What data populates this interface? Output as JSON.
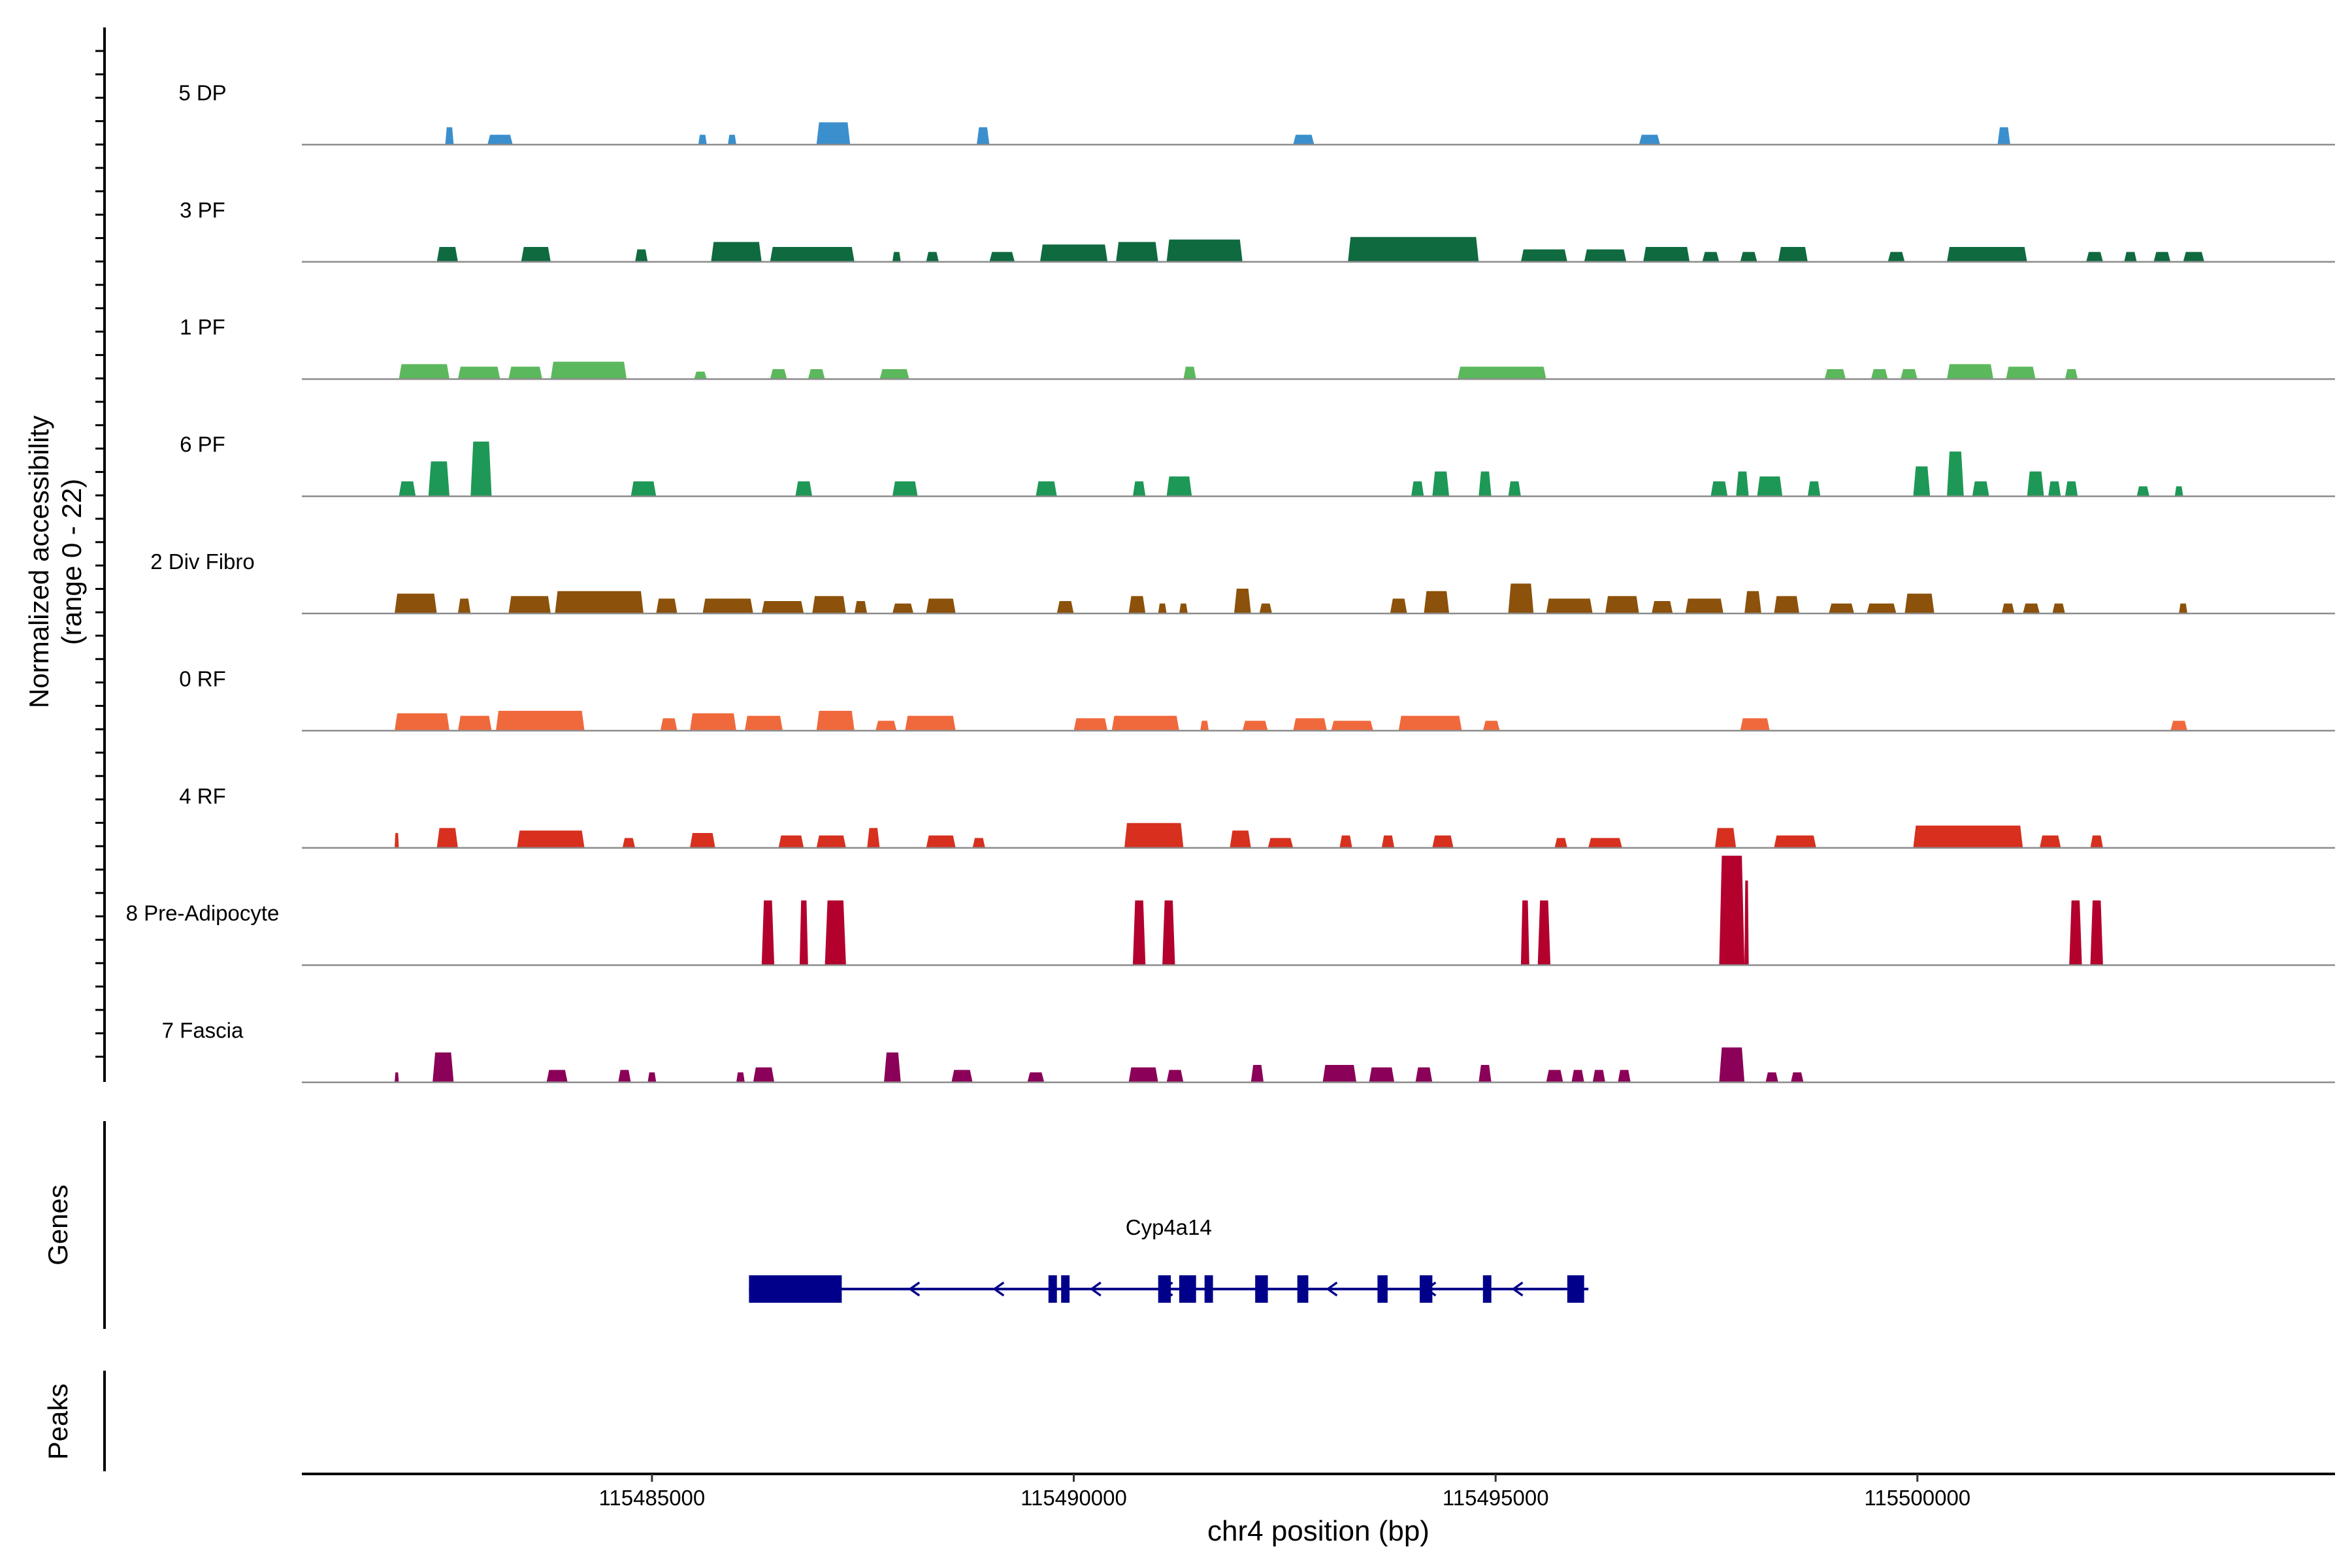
{
  "chart_data": {
    "type": "area",
    "subtype": "coverage-track",
    "y_axis_label": "Normalized accessibility",
    "y_axis_sublabel": "(range 0 - 22)",
    "yrange": [
      0,
      22
    ],
    "xlabel": "chr4 position (bp)",
    "xlim": [
      115480850,
      115504950
    ],
    "x_ticks": [
      115485000,
      115490000,
      115495000,
      115500000
    ],
    "x_tick_labels": [
      "115485000",
      "115490000",
      "115495000",
      "115500000"
    ],
    "tracks": [
      {
        "name": "5 DP",
        "color": "#3b8fcd",
        "peaks": [
          [
            115482550,
            115482650,
            3.5
          ],
          [
            115483050,
            115483350,
            2
          ],
          [
            115485550,
            115485650,
            2
          ],
          [
            115485900,
            115486000,
            2
          ],
          [
            115486950,
            115487350,
            4.5
          ],
          [
            115488850,
            115489000,
            3.5
          ],
          [
            115492600,
            115492850,
            2
          ],
          [
            115496700,
            115496950,
            2
          ],
          [
            115500950,
            115501100,
            3.5
          ]
        ]
      },
      {
        "name": "3 PF",
        "color": "#0f6a40",
        "peaks": [
          [
            115482450,
            115482700,
            3
          ],
          [
            115483450,
            115483800,
            3
          ],
          [
            115484800,
            115484950,
            2.5
          ],
          [
            115485700,
            115486300,
            4
          ],
          [
            115486400,
            115487400,
            3
          ],
          [
            115487850,
            115487950,
            2
          ],
          [
            115488250,
            115488400,
            2
          ],
          [
            115489000,
            115489300,
            2
          ],
          [
            115489600,
            115490400,
            3.5
          ],
          [
            115490500,
            115491000,
            4
          ],
          [
            115491100,
            115492000,
            4.5
          ],
          [
            115493250,
            115494800,
            5
          ],
          [
            115495300,
            115495850,
            2.5
          ],
          [
            115496050,
            115496550,
            2.5
          ],
          [
            115496750,
            115497300,
            3
          ],
          [
            115497450,
            115497650,
            2
          ],
          [
            115497900,
            115498100,
            2
          ],
          [
            115498350,
            115498700,
            3
          ],
          [
            115499650,
            115499850,
            2
          ],
          [
            115500350,
            115501300,
            3
          ],
          [
            115502000,
            115502200,
            2
          ],
          [
            115502450,
            115502600,
            2
          ],
          [
            115502800,
            115503000,
            2
          ],
          [
            115503150,
            115503400,
            2
          ]
        ]
      },
      {
        "name": "1 PF",
        "color": "#5cb85c",
        "peaks": [
          [
            115482000,
            115482600,
            3
          ],
          [
            115482700,
            115483200,
            2.5
          ],
          [
            115483300,
            115483700,
            2.5
          ],
          [
            115483800,
            115484700,
            3.5
          ],
          [
            115485500,
            115485650,
            1.5
          ],
          [
            115486400,
            115486600,
            2
          ],
          [
            115486850,
            115487050,
            2
          ],
          [
            115487700,
            115488050,
            2
          ],
          [
            115491300,
            115491450,
            2.5
          ],
          [
            115494550,
            115495600,
            2.5
          ],
          [
            115498900,
            115499150,
            2
          ],
          [
            115499450,
            115499650,
            2
          ],
          [
            115499800,
            115500000,
            2
          ],
          [
            115500350,
            115500900,
            3
          ],
          [
            115501050,
            115501400,
            2.5
          ],
          [
            115501750,
            115501900,
            2
          ]
        ]
      },
      {
        "name": "6 PF",
        "color": "#1e9856",
        "peaks": [
          [
            115482000,
            115482200,
            3
          ],
          [
            115482350,
            115482600,
            7
          ],
          [
            115482850,
            115483100,
            11
          ],
          [
            115484750,
            115485050,
            3
          ],
          [
            115486700,
            115486900,
            3
          ],
          [
            115487850,
            115488150,
            3
          ],
          [
            115489550,
            115489800,
            3
          ],
          [
            115490700,
            115490850,
            3
          ],
          [
            115491100,
            115491400,
            4
          ],
          [
            115494000,
            115494150,
            3
          ],
          [
            115494250,
            115494450,
            5
          ],
          [
            115494800,
            115494950,
            5
          ],
          [
            115495150,
            115495300,
            3
          ],
          [
            115497550,
            115497750,
            3
          ],
          [
            115497850,
            115498000,
            5
          ],
          [
            115498100,
            115498400,
            4
          ],
          [
            115498700,
            115498850,
            3
          ],
          [
            115499950,
            115500150,
            6
          ],
          [
            115500350,
            115500550,
            9
          ],
          [
            115500650,
            115500850,
            3
          ],
          [
            115501300,
            115501500,
            5
          ],
          [
            115501550,
            115501700,
            3
          ],
          [
            115501750,
            115501900,
            3
          ],
          [
            115502600,
            115502750,
            2
          ],
          [
            115503050,
            115503150,
            2
          ]
        ]
      },
      {
        "name": "2 Div Fibro",
        "color": "#8c510a",
        "peaks": [
          [
            115481950,
            115482450,
            4
          ],
          [
            115482700,
            115482850,
            3
          ],
          [
            115483300,
            115483800,
            3.5
          ],
          [
            115483850,
            115484900,
            4.5
          ],
          [
            115485050,
            115485300,
            3
          ],
          [
            115485600,
            115486200,
            3
          ],
          [
            115486300,
            115486800,
            2.5
          ],
          [
            115486900,
            115487300,
            3.5
          ],
          [
            115487400,
            115487550,
            2.5
          ],
          [
            115487850,
            115488100,
            2
          ],
          [
            115488250,
            115488600,
            3
          ],
          [
            115489800,
            115490000,
            2.5
          ],
          [
            115490650,
            115490850,
            3.5
          ],
          [
            115491000,
            115491100,
            2
          ],
          [
            115491250,
            115491350,
            2
          ],
          [
            115491900,
            115492100,
            5
          ],
          [
            115492200,
            115492350,
            2
          ],
          [
            115493750,
            115493950,
            3
          ],
          [
            115494150,
            115494450,
            4.5
          ],
          [
            115495150,
            115495450,
            6
          ],
          [
            115495600,
            115496150,
            3
          ],
          [
            115496300,
            115496700,
            3.5
          ],
          [
            115496850,
            115497100,
            2.5
          ],
          [
            115497250,
            115497700,
            3
          ],
          [
            115497950,
            115498150,
            4.5
          ],
          [
            115498300,
            115498600,
            3.5
          ],
          [
            115498950,
            115499250,
            2
          ],
          [
            115499400,
            115499750,
            2
          ],
          [
            115499850,
            115500200,
            4
          ],
          [
            115501000,
            115501150,
            2
          ],
          [
            115501250,
            115501450,
            2
          ],
          [
            115501600,
            115501750,
            2
          ],
          [
            115503100,
            115503200,
            2
          ]
        ]
      },
      {
        "name": "0 RF",
        "color": "#f0693c",
        "peaks": [
          [
            115481950,
            115482600,
            3.5
          ],
          [
            115482700,
            115483100,
            3
          ],
          [
            115483150,
            115484200,
            4
          ],
          [
            115485100,
            115485300,
            2.5
          ],
          [
            115485450,
            115486000,
            3.5
          ],
          [
            115486100,
            115486550,
            3
          ],
          [
            115486950,
            115487400,
            4
          ],
          [
            115487650,
            115487900,
            2
          ],
          [
            115488000,
            115488600,
            3
          ],
          [
            115490000,
            115490400,
            2.5
          ],
          [
            115490450,
            115491250,
            3
          ],
          [
            115491500,
            115491600,
            2
          ],
          [
            115492000,
            115492300,
            2
          ],
          [
            115492600,
            115493000,
            2.5
          ],
          [
            115493050,
            115493550,
            2
          ],
          [
            115493850,
            115494600,
            3
          ],
          [
            115494850,
            115495050,
            2
          ],
          [
            115497900,
            115498250,
            2.5
          ],
          [
            115503000,
            115503200,
            2
          ]
        ]
      },
      {
        "name": "4 RF",
        "color": "#d7301f",
        "peaks": [
          [
            115481950,
            115482000,
            3
          ],
          [
            115482450,
            115482700,
            4
          ],
          [
            115483400,
            115484200,
            3.5
          ],
          [
            115484650,
            115484800,
            2
          ],
          [
            115485450,
            115485750,
            3
          ],
          [
            115486500,
            115486800,
            2.5
          ],
          [
            115486950,
            115487300,
            2.5
          ],
          [
            115487550,
            115487700,
            4
          ],
          [
            115488250,
            115488600,
            2.5
          ],
          [
            115488800,
            115488950,
            2
          ],
          [
            115490600,
            115491300,
            5
          ],
          [
            115491850,
            115492100,
            3.5
          ],
          [
            115492300,
            115492600,
            2
          ],
          [
            115493150,
            115493300,
            2.5
          ],
          [
            115493650,
            115493800,
            2.5
          ],
          [
            115494250,
            115494500,
            2.5
          ],
          [
            115495700,
            115495850,
            2
          ],
          [
            115496100,
            115496500,
            2
          ],
          [
            115497600,
            115497850,
            4
          ],
          [
            115498300,
            115498800,
            2.5
          ],
          [
            115499950,
            115501250,
            4.5
          ],
          [
            115501450,
            115501700,
            2.5
          ],
          [
            115502050,
            115502200,
            2.5
          ]
        ]
      },
      {
        "name": "8 Pre-Adipocyte",
        "color": "#b3002d",
        "peaks": [
          [
            115486300,
            115486450,
            13
          ],
          [
            115486750,
            115486850,
            13
          ],
          [
            115487050,
            115487300,
            13
          ],
          [
            115490700,
            115490850,
            13
          ],
          [
            115491050,
            115491200,
            13
          ],
          [
            115495300,
            115495400,
            13
          ],
          [
            115495500,
            115495650,
            13
          ],
          [
            115497650,
            115497950,
            22
          ],
          [
            115497950,
            115498000,
            17
          ],
          [
            115501800,
            115501950,
            13
          ],
          [
            115502050,
            115502200,
            13
          ]
        ]
      },
      {
        "name": "7 Fascia",
        "color": "#8b0058",
        "peaks": [
          [
            115481950,
            115482000,
            2
          ],
          [
            115482400,
            115482650,
            6
          ],
          [
            115483750,
            115484000,
            2.5
          ],
          [
            115484600,
            115484750,
            2.5
          ],
          [
            115484950,
            115485050,
            2
          ],
          [
            115486000,
            115486100,
            2
          ],
          [
            115486200,
            115486450,
            3
          ],
          [
            115487750,
            115487950,
            6
          ],
          [
            115488550,
            115488800,
            2.5
          ],
          [
            115489450,
            115489650,
            2
          ],
          [
            115490650,
            115491000,
            3
          ],
          [
            115491100,
            115491300,
            2.5
          ],
          [
            115492100,
            115492250,
            3.5
          ],
          [
            115492950,
            115493350,
            3.5
          ],
          [
            115493500,
            115493800,
            3
          ],
          [
            115494050,
            115494250,
            3
          ],
          [
            115494800,
            115494950,
            3.5
          ],
          [
            115495600,
            115495800,
            2.5
          ],
          [
            115495900,
            115496050,
            2.5
          ],
          [
            115496150,
            115496300,
            2.5
          ],
          [
            115496450,
            115496600,
            2.5
          ],
          [
            115497650,
            115497950,
            7
          ],
          [
            115498200,
            115498350,
            2
          ],
          [
            115498500,
            115498650,
            2
          ]
        ]
      }
    ],
    "genes_label": "Genes",
    "gene": {
      "name": "Cyp4a14",
      "start": 115486150,
      "end": 115496100,
      "strand": "-",
      "exons": [
        [
          115486150,
          115487250
        ],
        [
          115489700,
          115489800
        ],
        [
          115489850,
          115489950
        ],
        [
          115491000,
          115491150
        ],
        [
          115491250,
          115491450
        ],
        [
          115491550,
          115491650
        ],
        [
          115492150,
          115492300
        ],
        [
          115492650,
          115492780
        ],
        [
          115493600,
          115493720
        ],
        [
          115494100,
          115494250
        ],
        [
          115494850,
          115494950
        ],
        [
          115495850,
          115496050
        ]
      ],
      "arrows": [
        115488100,
        115489100,
        115490250,
        115491100,
        115493050,
        115494220,
        115495250
      ]
    },
    "peaks_label": "Peaks"
  }
}
